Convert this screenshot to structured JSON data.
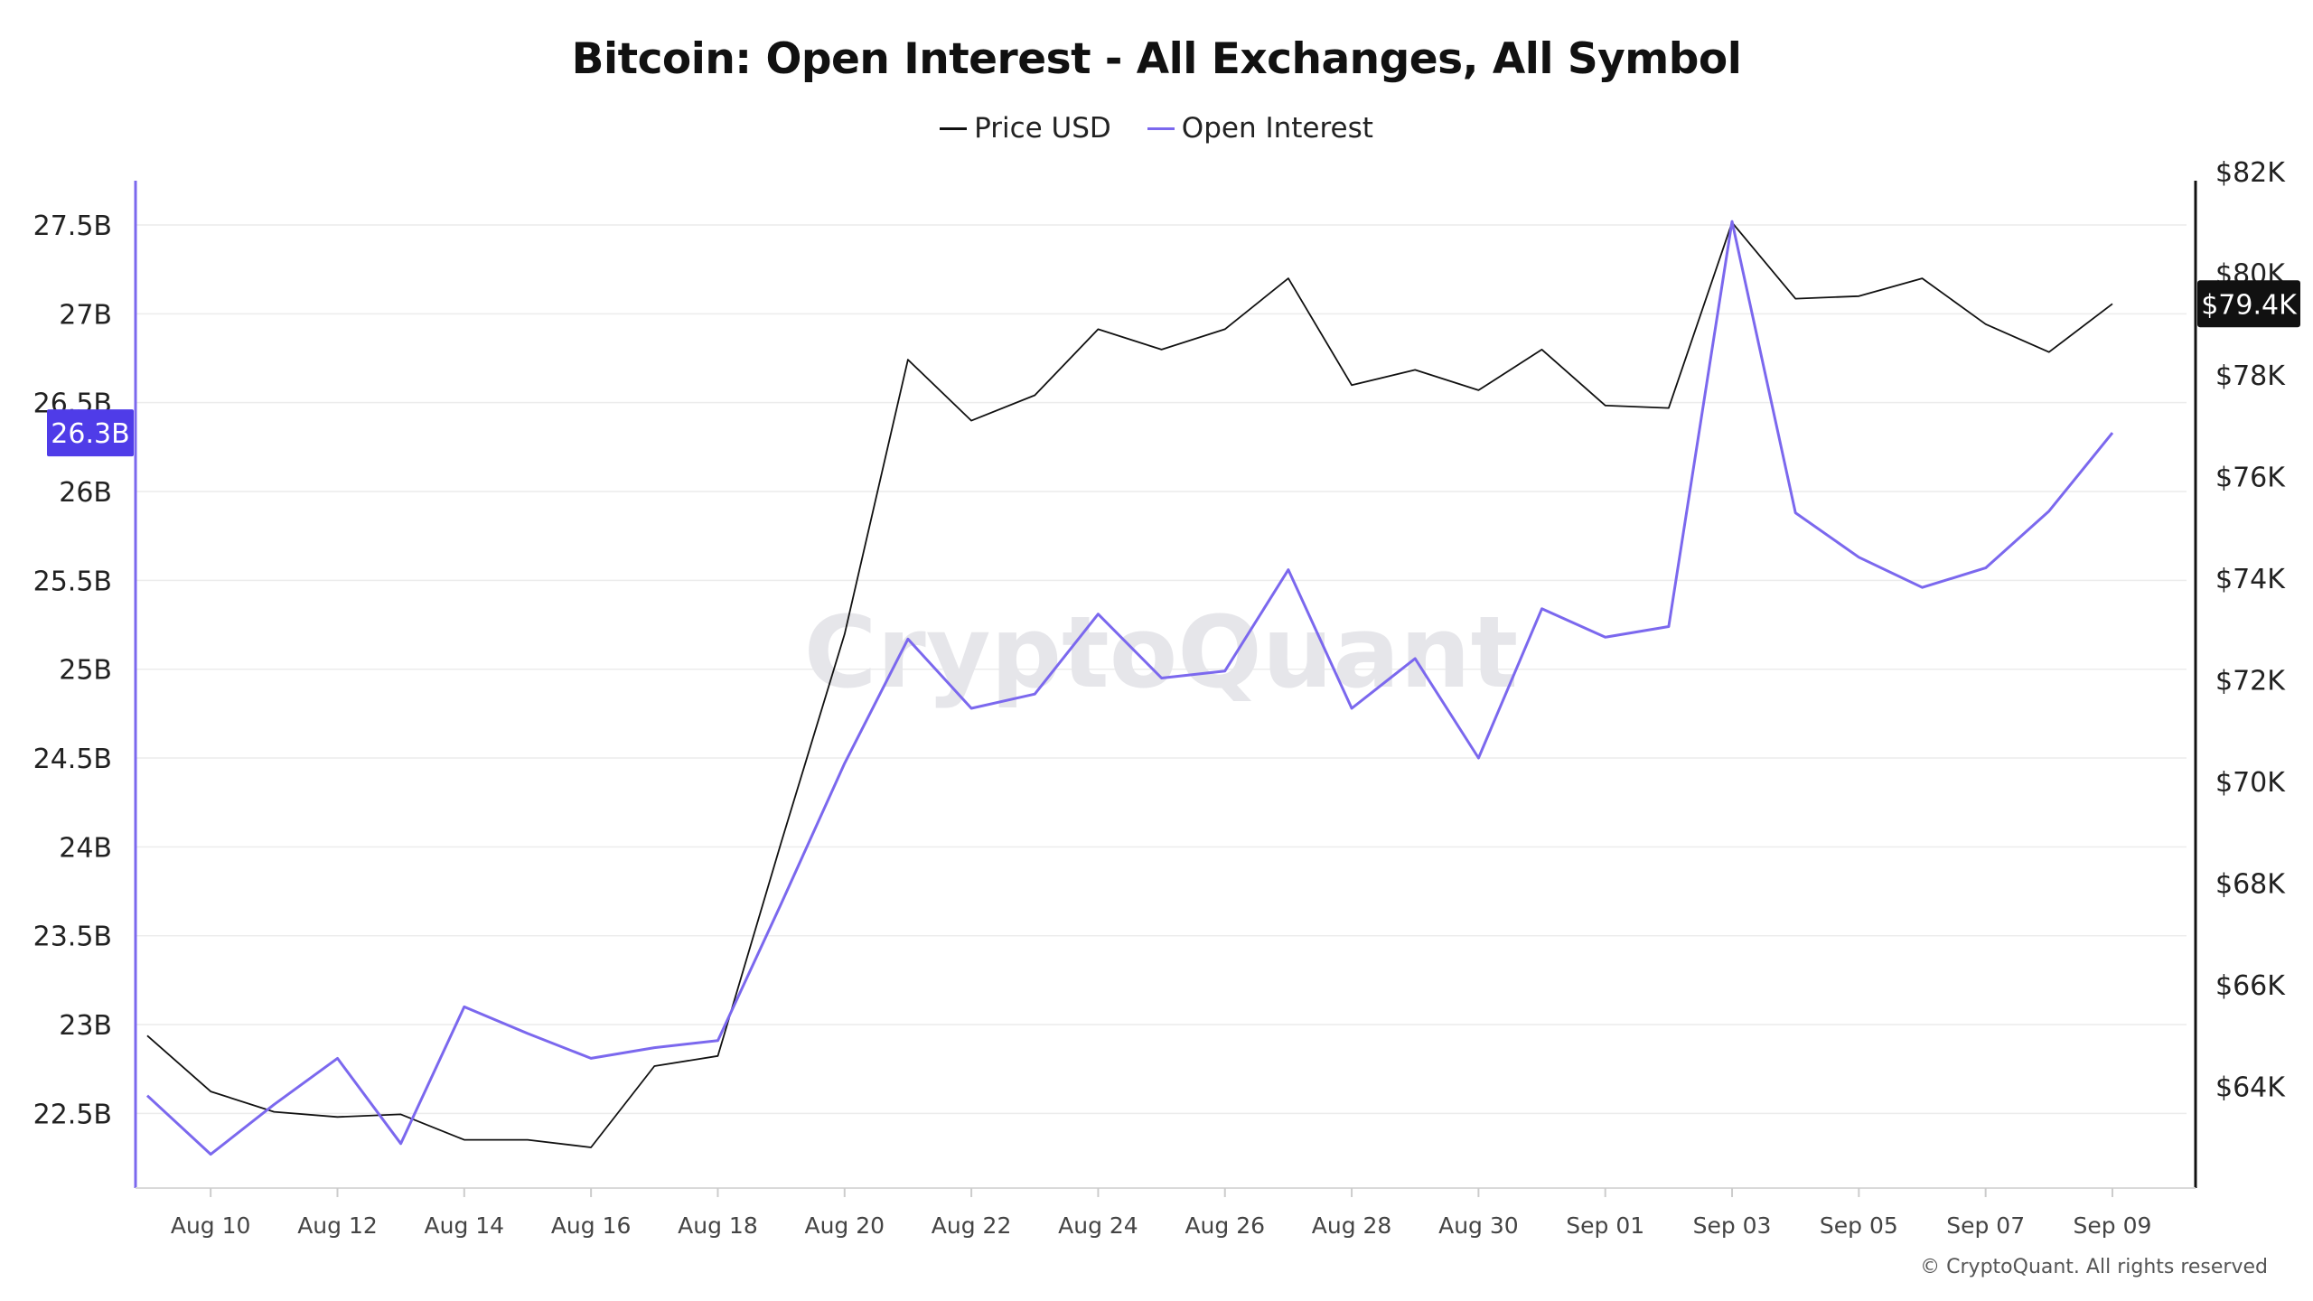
{
  "chart_data": {
    "type": "line",
    "title": "Bitcoin: Open Interest - All Exchanges, All Symbol",
    "legend_placement": "top-center",
    "grid": true,
    "watermark": "CryptoQuant",
    "copyright": "© CryptoQuant. All rights reserved",
    "x": [
      "2024-08-09",
      "2024-08-10",
      "2024-08-11",
      "2024-08-12",
      "2024-08-13",
      "2024-08-14",
      "2024-08-15",
      "2024-08-16",
      "2024-08-17",
      "2024-08-18",
      "2024-08-19",
      "2024-08-20",
      "2024-08-21",
      "2024-08-22",
      "2024-08-23",
      "2024-08-24",
      "2024-08-25",
      "2024-08-26",
      "2024-08-27",
      "2024-08-28",
      "2024-08-29",
      "2024-08-30",
      "2024-08-31",
      "2024-09-01",
      "2024-09-02",
      "2024-09-03",
      "2024-09-04",
      "2024-09-05",
      "2024-09-06",
      "2024-09-07",
      "2024-09-08",
      "2024-09-09"
    ],
    "x_tick_labels": [
      "Aug 10",
      "Aug 12",
      "Aug 14",
      "Aug 16",
      "Aug 18",
      "Aug 20",
      "Aug 22",
      "Aug 24",
      "Aug 26",
      "Aug 28",
      "Aug 30",
      "Sep 01",
      "Sep 03",
      "Sep 05",
      "Sep 07",
      "Sep 09"
    ],
    "x_tick_dates": [
      "2024-08-10",
      "2024-08-12",
      "2024-08-14",
      "2024-08-16",
      "2024-08-18",
      "2024-08-20",
      "2024-08-22",
      "2024-08-24",
      "2024-08-26",
      "2024-08-28",
      "2024-08-30",
      "2024-09-01",
      "2024-09-03",
      "2024-09-05",
      "2024-09-07",
      "2024-09-09"
    ],
    "y_left": {
      "ticks": [
        22500000000,
        23000000000,
        23500000000,
        24000000000,
        24500000000,
        25000000000,
        25500000000,
        26000000000,
        26500000000,
        27000000000,
        27500000000
      ],
      "tick_labels": [
        "22.5B",
        "23B",
        "23.5B",
        "24B",
        "24.5B",
        "25B",
        "25.5B",
        "26B",
        "26.5B",
        "27B",
        "27.5B"
      ],
      "range": [
        22080000000,
        27800000000
      ],
      "axis_color": "#7B68EE"
    },
    "y_right": {
      "ticks": [
        64000,
        66000,
        68000,
        70000,
        72000,
        74000,
        76000,
        78000,
        80000,
        82000
      ],
      "tick_labels": [
        "$64K",
        "$66K",
        "$68K",
        "$70K",
        "$72K",
        "$74K",
        "$76K",
        "$78K",
        "$80K",
        "$82K"
      ],
      "range": [
        62000,
        82000
      ],
      "axis_color": "#111111"
    },
    "series": [
      {
        "name": "Price USD",
        "axis": "right",
        "color": "#111111",
        "values": [
          65000,
          63900,
          63500,
          63400,
          63450,
          62950,
          62950,
          62800,
          64400,
          64600,
          68800,
          72900,
          78300,
          77100,
          77600,
          78900,
          78500,
          78900,
          79900,
          77800,
          78100,
          77700,
          78500,
          77400,
          77350,
          81000,
          79500,
          79550,
          79900,
          79000,
          78450,
          79400
        ],
        "last_label": "$79.4K",
        "last_label_bg": "#111111"
      },
      {
        "name": "Open Interest",
        "axis": "left",
        "color": "#7B68EE",
        "values": [
          22600000000,
          22270000000,
          22550000000,
          22810000000,
          22330000000,
          23100000000,
          22950000000,
          22810000000,
          22870000000,
          22910000000,
          23680000000,
          24470000000,
          25170000000,
          24780000000,
          24860000000,
          25310000000,
          24950000000,
          24990000000,
          25560000000,
          24780000000,
          25060000000,
          24500000000,
          25340000000,
          25180000000,
          25240000000,
          27520000000,
          25880000000,
          25630000000,
          25460000000,
          25570000000,
          25890000000,
          26330000000
        ],
        "last_label": "26.3B",
        "last_label_bg": "#4F3CE8"
      }
    ]
  }
}
